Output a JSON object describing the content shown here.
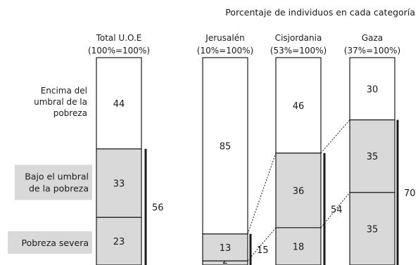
{
  "chart_data": {
    "type": "bar",
    "title": "Porcentaje de individuos en cada categoría",
    "columns": [
      {
        "name": "Total U.O.E",
        "share": "(100%=100%)",
        "values": [
          23,
          33,
          44
        ]
      },
      {
        "name": "Jerusalén",
        "share": "(10%=100%)",
        "values": [
          2,
          13,
          85
        ]
      },
      {
        "name": "Cisjordania",
        "share": "(53%=100%)",
        "values": [
          18,
          36,
          46
        ]
      },
      {
        "name": "Gaza",
        "share": "(37%=100%)",
        "values": [
          35,
          35,
          30
        ]
      }
    ],
    "categories": [
      "Pobreza severa",
      "Bajo el umbral de la pobreza",
      "Encima del umbral de la pobreza"
    ],
    "category_labels": [
      [
        "Pobreza severa"
      ],
      [
        "Bajo el umbral",
        "de la pobreza"
      ],
      [
        "Encima del",
        "umbral de la",
        "pobreza"
      ]
    ],
    "brackets": [
      {
        "column": "Total U.O.E",
        "value": 56
      },
      {
        "column": "Jerusalén",
        "value": 15
      },
      {
        "column": "Cisjordania",
        "value": 54
      },
      {
        "column": "Gaza",
        "value": 70
      }
    ],
    "colors": {
      "below": "#d9d9d9",
      "above": "#ffffff",
      "stroke": "#1a1a1a",
      "label_box": "#d9d9d9"
    }
  }
}
